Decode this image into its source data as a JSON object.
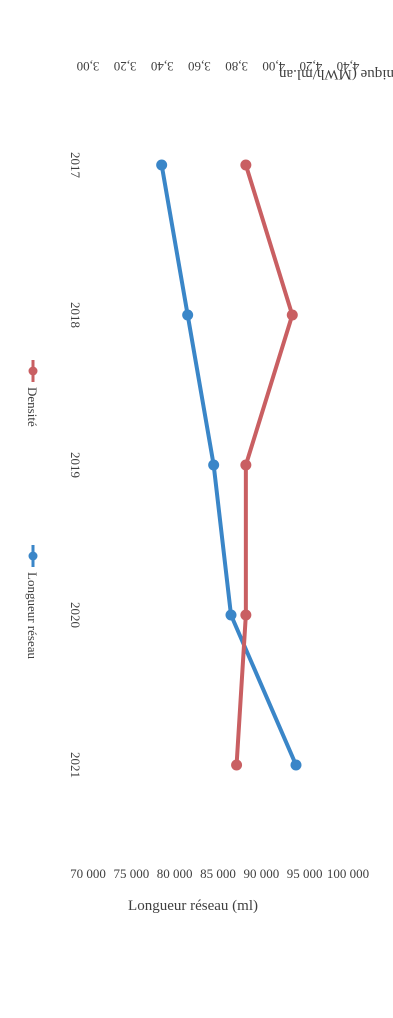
{
  "chart_data": {
    "type": "line",
    "orientation": "rotated 90deg clockwise",
    "categories": [
      "2017",
      "2018",
      "2019",
      "2020",
      "2021"
    ],
    "series": [
      {
        "name": "Longueur réseau",
        "axis": "left",
        "color": "#3a86c8",
        "values": [
          78500,
          81500,
          84500,
          86500,
          94000
        ]
      },
      {
        "name": "Densité",
        "axis": "right",
        "color": "#c95f62",
        "values": [
          3.85,
          4.1,
          3.85,
          3.85,
          3.8
        ]
      }
    ],
    "ylabel": "Longueur réseau (ml)",
    "y2label": "Densité thermique (MWh/ml.an",
    "ylim": [
      70000,
      100000
    ],
    "y2lim": [
      3.0,
      4.4
    ],
    "yticks": [
      "70 000",
      "75 000",
      "80 000",
      "85 000",
      "90 000",
      "95 000",
      "100 000"
    ],
    "y2ticks": [
      "3,00",
      "3,20",
      "3,40",
      "3,60",
      "3,80",
      "4,00",
      "4,20",
      "4,40"
    ],
    "grid": false,
    "legend_position": "bottom"
  }
}
